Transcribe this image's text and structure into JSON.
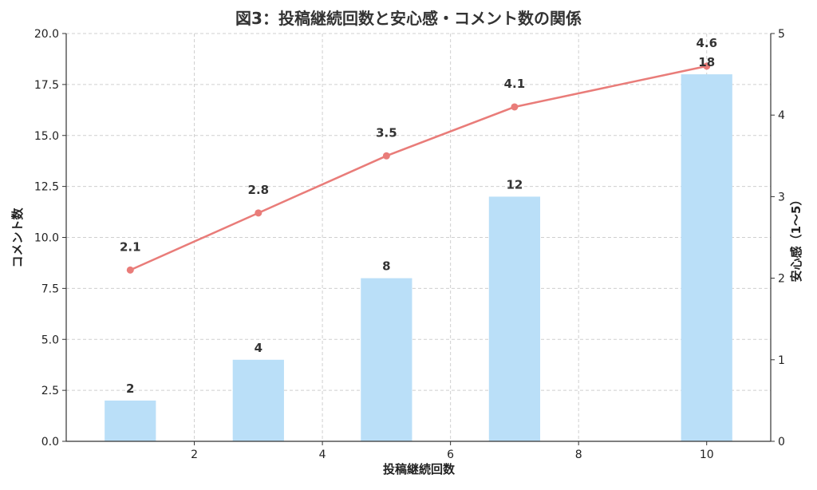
{
  "chart_data": {
    "type": "bar",
    "title": "図3：投稿継続回数と安心感・コメント数の関係",
    "xlabel": "投稿継続回数",
    "ylabel": "コメント数",
    "ylabel_right": "安心感（1〜5）",
    "xlim": [
      0,
      11
    ],
    "ylim": [
      0,
      20
    ],
    "ylim_right": [
      0,
      5
    ],
    "x_ticks": [
      "2",
      "4",
      "6",
      "8",
      "10"
    ],
    "y_ticks": [
      "0.0",
      "2.5",
      "5.0",
      "7.5",
      "10.0",
      "12.5",
      "15.0",
      "17.5",
      "20.0"
    ],
    "y_ticks_right": [
      "0",
      "1",
      "2",
      "3",
      "4",
      "5"
    ],
    "grid": true,
    "series": [
      {
        "type": "bar",
        "axis": "left",
        "color": "#badff8",
        "x": [
          1,
          3,
          5,
          7,
          10
        ],
        "values": [
          2,
          4,
          8,
          12,
          18
        ],
        "labels": [
          "2",
          "4",
          "8",
          "12",
          "18"
        ]
      },
      {
        "type": "line",
        "axis": "right",
        "color": "#e97c79",
        "x": [
          1,
          3,
          5,
          7,
          10
        ],
        "values": [
          2.1,
          2.8,
          3.5,
          4.1,
          4.6
        ],
        "labels": [
          "2.1",
          "2.8",
          "3.5",
          "4.1",
          "4.6"
        ]
      }
    ]
  }
}
